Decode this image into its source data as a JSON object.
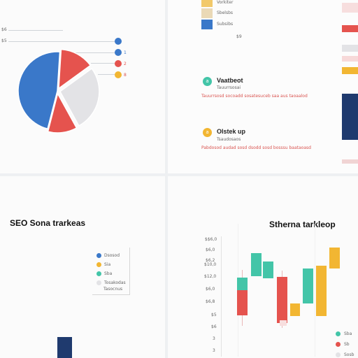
{
  "colors": {
    "blue": "#3a78c9",
    "red": "#e5534e",
    "gray": "#e3e3e6",
    "yellow": "#f2b632",
    "teal": "#43c5a8",
    "navy": "#1f3a6e"
  },
  "top_left": {
    "labels": [
      "$6",
      "$5"
    ],
    "legend_marks": [
      "",
      "1",
      "2",
      "8"
    ],
    "chart_data": {
      "type": "pie",
      "slices": [
        {
          "label": "",
          "value": 47,
          "color": "#3a78c9"
        },
        {
          "label": "",
          "value": 14,
          "color": "#e5534e"
        },
        {
          "label": "",
          "value": 27,
          "color": "#e3e3e6"
        },
        {
          "label": "",
          "value": 12,
          "color": "#e5534e"
        }
      ]
    }
  },
  "top_right": {
    "legend": [
      {
        "label": "Vorkiter",
        "color": "#f2c96a"
      },
      {
        "label": "Sbelsbs",
        "color": "#ead9b6"
      },
      {
        "label": "Subsibs",
        "color": "#3a78c9"
      }
    ],
    "legend_note": "$9",
    "feed": [
      {
        "icon": "a",
        "icon_color": "#43c5a8",
        "title": "Vaatbeot",
        "subtitle": "Tauurrsosai",
        "body": "Tauurrsosd socoadd sosatesuceb saa aus taoaalod"
      },
      {
        "icon": "a",
        "icon_color": "#f2b632",
        "title": "Olstek up",
        "subtitle": "Tsaudosaos",
        "body": "Pabdosod audad sosd dsodd sosd bosssu baataoasd"
      }
    ]
  },
  "bottom_left": {
    "title": "SEO Sona trarkeas",
    "legend": [
      {
        "label": "Dsosod",
        "color": "#3a78c9"
      },
      {
        "label": "Sia",
        "color": "#f2b632"
      },
      {
        "label": "Sba",
        "color": "#43c5a8"
      },
      {
        "label": "Tosakodas",
        "color": "#e3e3e6"
      }
    ],
    "legend_note": "Tasocnus"
  },
  "bottom_right": {
    "title": "Stherna tarkleop",
    "y_ticks": [
      "$$6,0",
      "$6,0",
      "$6,2",
      "$10,0",
      "$12,0",
      "$6,0",
      "$6,8",
      "$5",
      "$6",
      "3",
      "3"
    ],
    "legend": [
      {
        "label": "Sba",
        "color": "#43c5a8"
      },
      {
        "label": "Sb",
        "color": "#e5534e"
      },
      {
        "label": "Sosb",
        "color": "#e3e3e6"
      }
    ]
  }
}
